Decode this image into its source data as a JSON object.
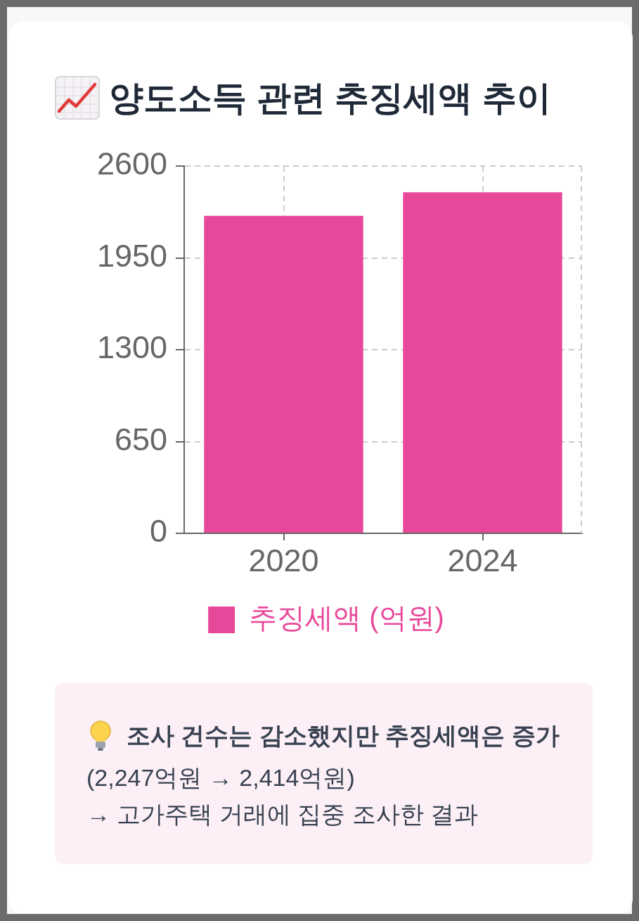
{
  "chart_data": {
    "type": "bar",
    "title": "양도소득 관련 추징세액 추이",
    "categories": [
      "2020",
      "2024"
    ],
    "series": [
      {
        "name": "추징세액 (억원)",
        "color": "#e8489a",
        "values": [
          2247,
          2414
        ]
      }
    ],
    "ylim": [
      0,
      2600
    ],
    "yticks": [
      0,
      650,
      1300,
      1950,
      2600
    ],
    "grid": true,
    "legend": "bottom",
    "annotations": [
      "조사 건수는 감소했지만 추징세액은 증가",
      "(2,247억원 → 2,414억원)",
      "→ 고가주택 거래에 집중 조사한 결과"
    ]
  }
}
